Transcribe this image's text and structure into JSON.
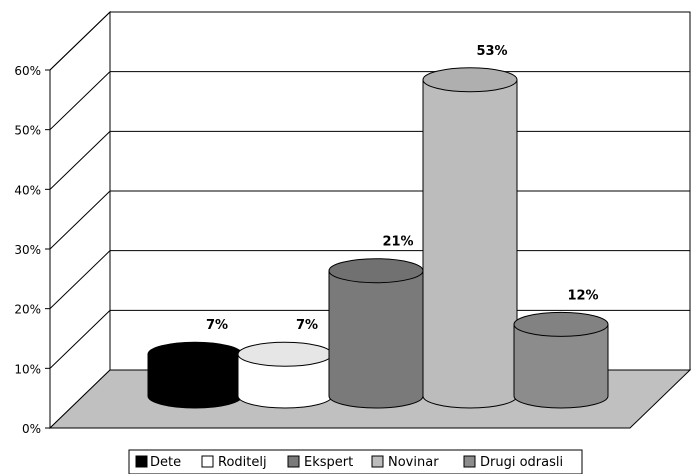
{
  "chart_data": {
    "type": "bar",
    "title": "",
    "xlabel": "",
    "ylabel": "",
    "ylim": [
      0,
      60
    ],
    "yticks": [
      "0%",
      "10%",
      "20%",
      "30%",
      "40%",
      "50%",
      "60%"
    ],
    "grid": true,
    "legend_position": "bottom",
    "categories": [
      "Dete",
      "Roditelj",
      "Ekspert",
      "Novinar",
      "Drugi odrasli"
    ],
    "values": [
      7,
      7,
      21,
      53,
      12
    ],
    "data_labels": [
      "7%",
      "7%",
      "21%",
      "53%",
      "12%"
    ],
    "colors": [
      "#000000",
      "#ffffff",
      "#7a7a7a",
      "#bcbcbc",
      "#8c8c8c"
    ]
  }
}
